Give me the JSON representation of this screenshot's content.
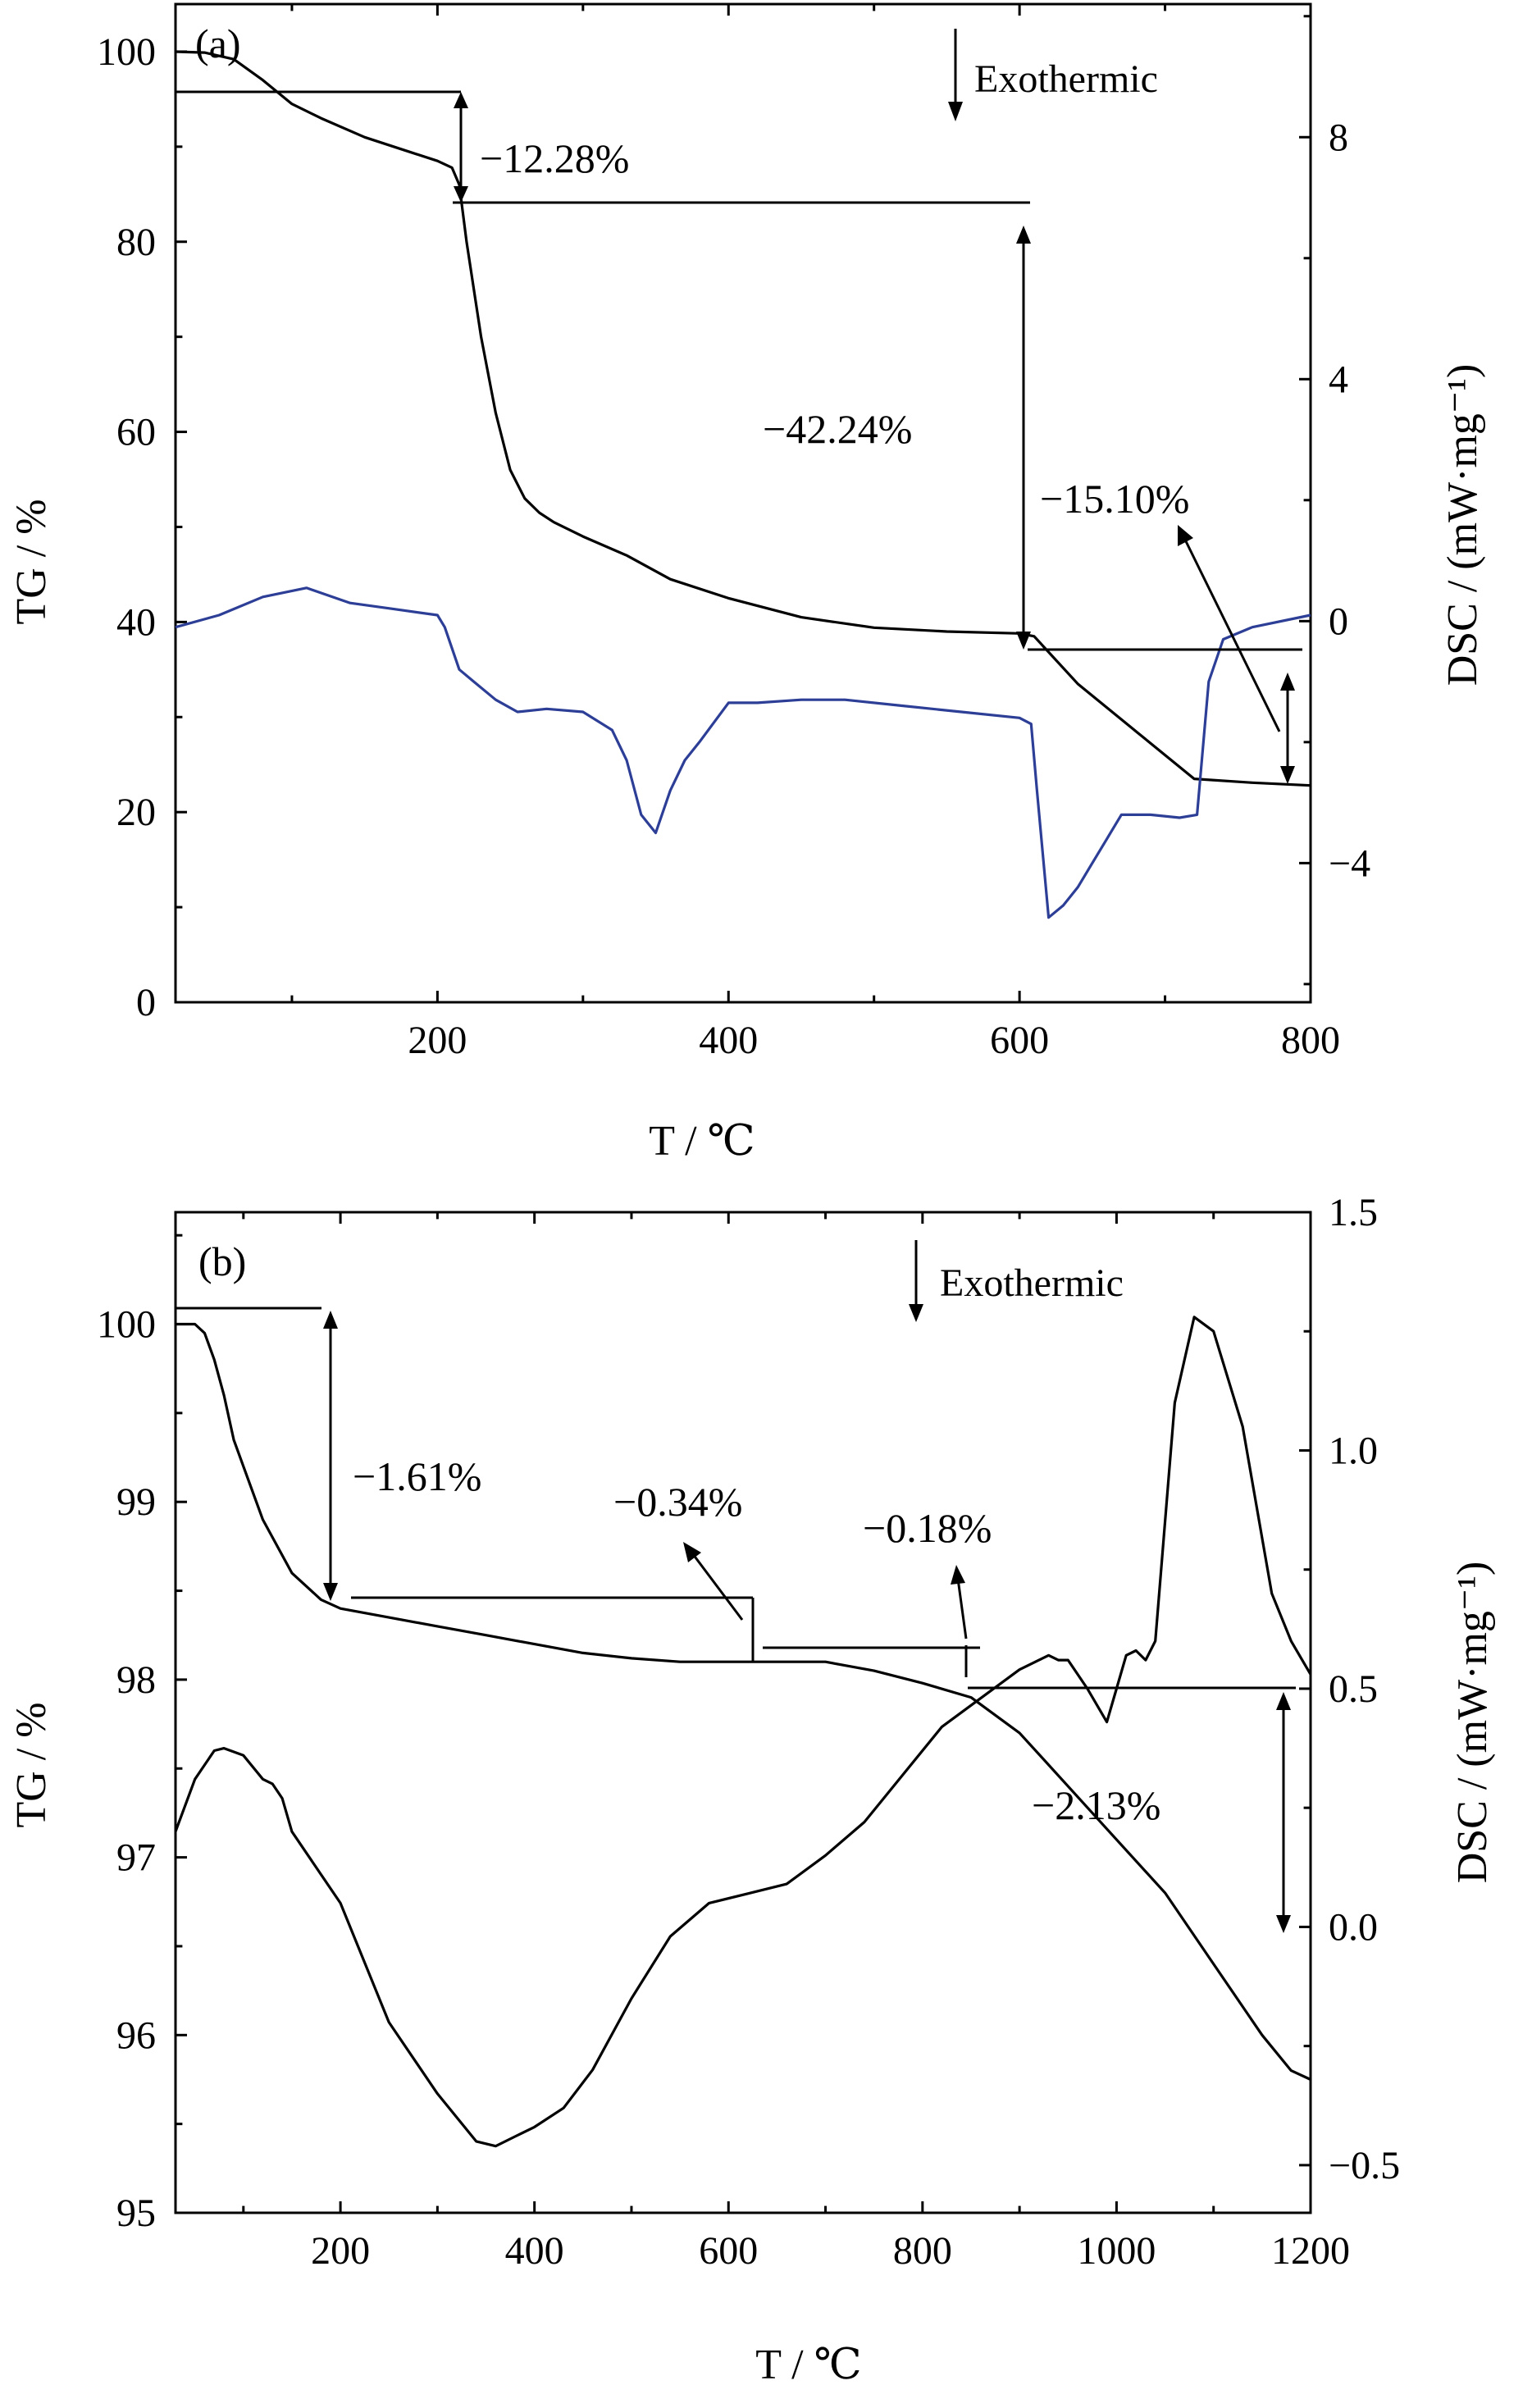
{
  "chart_data": [
    {
      "type": "line",
      "panel_label": "(a)",
      "xlabel": "T / ℃",
      "ylabel": "TG / %",
      "y2label": "DSC / (mW·mg⁻¹)",
      "xlim": [
        20,
        800
      ],
      "ylim": [
        0,
        105
      ],
      "y2lim": [
        -6.3,
        10.2
      ],
      "x_ticks": [
        200,
        400,
        600,
        800
      ],
      "y_ticks": [
        0,
        20,
        40,
        60,
        80,
        100
      ],
      "y2_ticks": [
        -4,
        0,
        4,
        8
      ],
      "exothermic_label": "Exothermic",
      "grid": false,
      "series": [
        {
          "axis": "left",
          "color": "#000000",
          "x": [
            20,
            40,
            60,
            80,
            100,
            120,
            150,
            180,
            200,
            210,
            215,
            220,
            230,
            240,
            250,
            260,
            270,
            280,
            300,
            330,
            360,
            400,
            450,
            500,
            550,
            600,
            610,
            640,
            680,
            720,
            760,
            800
          ],
          "values": [
            100,
            99.9,
            99.2,
            97,
            94.5,
            93,
            91,
            89.5,
            88.5,
            87.8,
            86,
            80,
            70,
            62,
            56,
            53,
            51.5,
            50.5,
            49,
            47,
            44.5,
            42.5,
            40.5,
            39.4,
            39.0,
            38.8,
            38.5,
            33.5,
            28.5,
            23.5,
            23.1,
            22.8
          ]
        },
        {
          "axis": "right",
          "color": "#2c3e96",
          "x": [
            20,
            50,
            80,
            110,
            140,
            170,
            200,
            205,
            215,
            225,
            240,
            255,
            275,
            300,
            320,
            330,
            340,
            350,
            360,
            370,
            380,
            400,
            420,
            450,
            480,
            520,
            560,
            600,
            608,
            612,
            620,
            630,
            640,
            650,
            660,
            670,
            690,
            710,
            722,
            730,
            740,
            760,
            800
          ],
          "values": [
            -0.1,
            0.1,
            0.4,
            0.55,
            0.3,
            0.2,
            0.1,
            -0.1,
            -0.8,
            -1.0,
            -1.3,
            -1.5,
            -1.45,
            -1.5,
            -1.8,
            -2.3,
            -3.2,
            -3.5,
            -2.8,
            -2.3,
            -2.0,
            -1.35,
            -1.35,
            -1.3,
            -1.3,
            -1.4,
            -1.5,
            -1.6,
            -1.7,
            -2.8,
            -4.9,
            -4.7,
            -4.4,
            -4.0,
            -3.6,
            -3.2,
            -3.2,
            -3.25,
            -3.2,
            -1.0,
            -0.3,
            -0.1,
            0.1
          ]
        }
      ],
      "annotations": [
        "−12.28%",
        "−42.24%",
        "−15.10%"
      ]
    },
    {
      "type": "line",
      "panel_label": "(b)",
      "xlabel": "T / ℃",
      "ylabel": "TG / %",
      "y2label": "DSC / (mW·mg⁻¹)",
      "xlim": [
        30,
        1200
      ],
      "ylim": [
        95,
        100.63
      ],
      "y2lim": [
        -0.6,
        1.5
      ],
      "x_ticks": [
        200,
        400,
        600,
        800,
        1000,
        1200
      ],
      "y_ticks": [
        95,
        96,
        97,
        98,
        99,
        100
      ],
      "y2_ticks": [
        -0.5,
        0.0,
        0.5,
        1.0,
        1.5
      ],
      "exothermic_label": "Exothermic",
      "grid": false,
      "series": [
        {
          "axis": "left",
          "color": "#000000",
          "x": [
            30,
            50,
            60,
            70,
            80,
            90,
            100,
            120,
            150,
            180,
            200,
            250,
            300,
            350,
            400,
            450,
            500,
            550,
            600,
            650,
            700,
            750,
            800,
            850,
            900,
            950,
            1000,
            1050,
            1100,
            1150,
            1180,
            1200
          ],
          "values": [
            100.0,
            100.0,
            99.95,
            99.8,
            99.6,
            99.35,
            99.2,
            98.9,
            98.6,
            98.45,
            98.4,
            98.35,
            98.3,
            98.25,
            98.2,
            98.15,
            98.12,
            98.1,
            98.1,
            98.1,
            98.1,
            98.05,
            97.98,
            97.9,
            97.7,
            97.4,
            97.1,
            96.8,
            96.4,
            96.0,
            95.8,
            95.75
          ]
        },
        {
          "axis": "right",
          "color": "#000000",
          "x": [
            30,
            50,
            70,
            80,
            100,
            120,
            130,
            140,
            150,
            200,
            250,
            300,
            340,
            360,
            380,
            400,
            430,
            460,
            500,
            540,
            580,
            620,
            660,
            700,
            740,
            780,
            820,
            860,
            900,
            920,
            930,
            940,
            950,
            970,
            990,
            1000,
            1010,
            1020,
            1030,
            1040,
            1060,
            1080,
            1100,
            1130,
            1160,
            1180,
            1200
          ],
          "values": [
            0.2,
            0.31,
            0.37,
            0.375,
            0.36,
            0.31,
            0.3,
            0.27,
            0.2,
            0.05,
            -0.2,
            -0.35,
            -0.45,
            -0.46,
            -0.44,
            -0.42,
            -0.38,
            -0.3,
            -0.15,
            -0.02,
            0.05,
            0.07,
            0.09,
            0.15,
            0.22,
            0.32,
            0.42,
            0.48,
            0.54,
            0.56,
            0.57,
            0.56,
            0.56,
            0.5,
            0.43,
            0.5,
            0.57,
            0.58,
            0.56,
            0.6,
            1.1,
            1.28,
            1.25,
            1.05,
            0.7,
            0.6,
            0.53
          ]
        }
      ],
      "annotations": [
        "−1.61%",
        "−0.34%",
        "−0.18%",
        "−2.13%"
      ]
    }
  ]
}
